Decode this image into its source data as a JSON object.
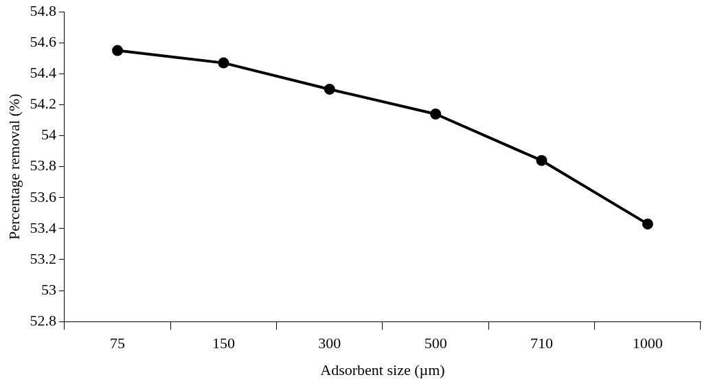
{
  "chart_data": {
    "type": "line",
    "xlabel": "Adsorbent size (µm)",
    "ylabel": "Percentage removal (%)",
    "categories": [
      "75",
      "150",
      "300",
      "500",
      "710",
      "1000"
    ],
    "series": [
      {
        "color": "#000000",
        "values": [
          54.55,
          54.47,
          54.3,
          54.14,
          53.84,
          53.43
        ]
      }
    ],
    "ylim": [
      52.8,
      54.8
    ],
    "yticks": [
      52.8,
      53,
      53.2,
      53.4,
      53.6,
      53.8,
      54,
      54.2,
      54.4,
      54.6,
      54.8
    ],
    "grid": false,
    "legend": false,
    "marker": "circle",
    "line_style": "solid"
  }
}
